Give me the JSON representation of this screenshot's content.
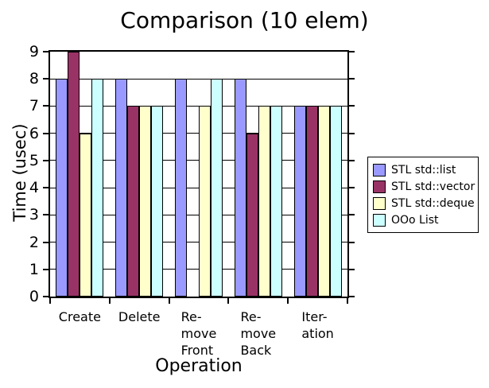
{
  "chart_data": {
    "type": "bar",
    "title": "Comparison (10 elem)",
    "xlabel": "Operation",
    "ylabel": "Time (usec)",
    "ylim": [
      0,
      9
    ],
    "ytick_step": 1,
    "grid": true,
    "legend_position": "right-outside",
    "background_color": "#ffffff",
    "axis_color": "#000000",
    "categories": [
      "Create",
      "Delete",
      "Re-\nmove\nFront",
      "Re-\nmove\nBack",
      "Iter-\nation"
    ],
    "series": [
      {
        "name": "STL std::list",
        "color": "#9999ff",
        "values": [
          8,
          8,
          8,
          8,
          7
        ]
      },
      {
        "name": "STL std::vector",
        "color": "#993366",
        "values": [
          9,
          7,
          0,
          6,
          7
        ]
      },
      {
        "name": "STL std::deque",
        "color": "#ffffcc",
        "values": [
          6,
          7,
          7,
          7,
          7
        ]
      },
      {
        "name": "OOo List",
        "color": "#ccffff",
        "values": [
          8,
          7,
          8,
          7,
          7
        ]
      }
    ]
  }
}
